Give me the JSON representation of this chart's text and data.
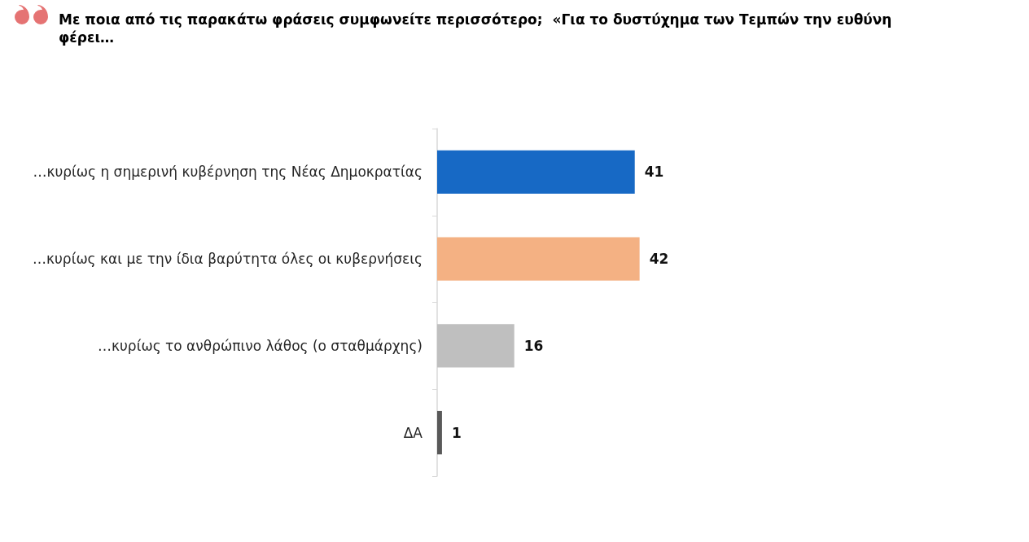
{
  "chart_data": {
    "type": "bar",
    "orientation": "horizontal",
    "title": "Με ποια από τις παρακάτω φράσεις συμφωνείτε περισσότερο;  «Για το δυστύχημα των Τεμπών την ευθύνη φέρει…",
    "categories": [
      "…κυρίως η σημερινή κυβέρνηση της Νέας Δημοκρατίας",
      "…κυρίως και με την ίδια βαρύτητα όλες οι κυβερνήσεις",
      "…κυρίως το ανθρώπινο λάθος (ο σταθμάρχης)",
      "ΔΑ"
    ],
    "values": [
      41,
      42,
      16,
      1
    ],
    "colors": [
      "#1769c5",
      "#f4b183",
      "#bfbfbf",
      "#595959"
    ],
    "data_labels": true
  }
}
